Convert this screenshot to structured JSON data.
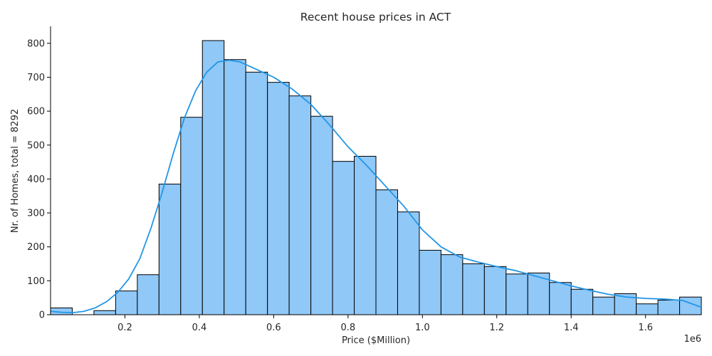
{
  "chart_data": {
    "type": "bar",
    "title": "Recent house prices in ACT",
    "xlabel": "Price ($Million)",
    "ylabel": "Nr. of Homes, total = 8292",
    "x_offset_label": "1e6",
    "xlim": [
      0,
      1750000
    ],
    "ylim": [
      0,
      850
    ],
    "x_ticks": [
      200000,
      400000,
      600000,
      800000,
      1000000,
      1200000,
      1400000,
      1600000
    ],
    "x_tick_labels": [
      "0.2",
      "0.4",
      "0.6",
      "0.8",
      "1.0",
      "1.2",
      "1.4",
      "1.6"
    ],
    "y_ticks": [
      0,
      100,
      200,
      300,
      400,
      500,
      600,
      700,
      800
    ],
    "y_tick_labels": [
      "0",
      "100",
      "200",
      "300",
      "400",
      "500",
      "600",
      "700",
      "800"
    ],
    "bin_width": 58333,
    "bins_start": [
      0,
      58333,
      116667,
      175000,
      233333,
      291667,
      350000,
      408333,
      466667,
      525000,
      583333,
      641667,
      700000,
      758333,
      816667,
      875000,
      933333,
      991667,
      1050000,
      1108333,
      1166667,
      1225000,
      1283333,
      1341667,
      1400000,
      1458333,
      1516667,
      1575000,
      1633333,
      1691667
    ],
    "counts": [
      20,
      0,
      12,
      70,
      118,
      385,
      582,
      808,
      752,
      715,
      685,
      645,
      585,
      452,
      467,
      368,
      303,
      190,
      177,
      150,
      142,
      120,
      123,
      95,
      75,
      52,
      62,
      32,
      43,
      52
    ],
    "kde": {
      "x": [
        0,
        30000,
        60000,
        90000,
        120000,
        150000,
        180000,
        210000,
        240000,
        270000,
        300000,
        330000,
        360000,
        390000,
        420000,
        450000,
        480000,
        510000,
        540000,
        570000,
        600000,
        650000,
        700000,
        750000,
        800000,
        850000,
        900000,
        950000,
        1000000,
        1050000,
        1100000,
        1150000,
        1200000,
        1250000,
        1300000,
        1350000,
        1400000,
        1450000,
        1500000,
        1550000,
        1600000,
        1650000,
        1700000,
        1750000
      ],
      "y": [
        10,
        7,
        6,
        10,
        20,
        38,
        65,
        105,
        165,
        255,
        360,
        475,
        580,
        660,
        715,
        745,
        750,
        745,
        730,
        715,
        700,
        665,
        620,
        560,
        495,
        440,
        380,
        320,
        250,
        200,
        170,
        155,
        142,
        130,
        115,
        100,
        85,
        72,
        60,
        52,
        48,
        46,
        42,
        22
      ],
      "color": "#2196e6"
    },
    "bar_color": "#90c8f8",
    "bar_edge_color": "#000000",
    "grid": false,
    "legend": "none"
  }
}
